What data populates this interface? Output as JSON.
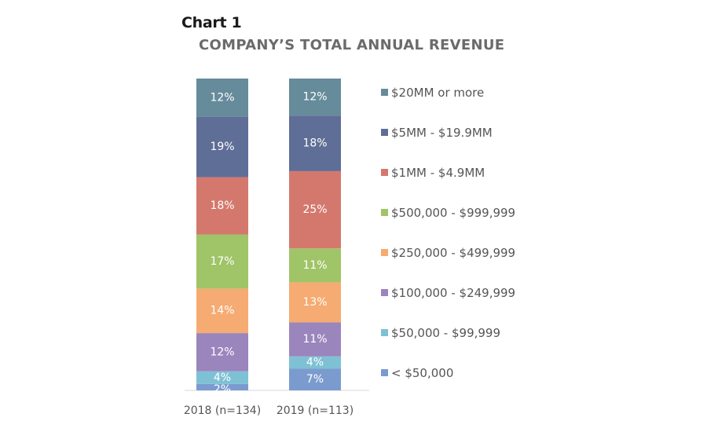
{
  "chart_data": {
    "type": "bar",
    "stacked": true,
    "orientation": "vertical",
    "title": "Chart 1",
    "subtitle": "COMPANY’S TOTAL ANNUAL REVENUE",
    "xlabel": "",
    "ylabel": "",
    "categories": [
      "2018 (n=134)",
      "2019 (n=113)"
    ],
    "series": [
      {
        "name": "< $50,000",
        "color": "#7b9bcf",
        "values": [
          2,
          7
        ],
        "labels": [
          "2%",
          "7%"
        ]
      },
      {
        "name": "$50,000 - $99,999",
        "color": "#7fc1d4",
        "values": [
          4,
          4
        ],
        "labels": [
          "4%",
          "4%"
        ]
      },
      {
        "name": "$100,000 - $249,999",
        "color": "#9b85bd",
        "values": [
          12,
          11
        ],
        "labels": [
          "12%",
          "11%"
        ]
      },
      {
        "name": "$250,000 - $499,999",
        "color": "#f5ab72",
        "values": [
          14,
          13
        ],
        "labels": [
          "14%",
          "13%"
        ]
      },
      {
        "name": "$500,000 - $999,999",
        "color": "#a0c468",
        "values": [
          17,
          11
        ],
        "labels": [
          "17%",
          "11%"
        ]
      },
      {
        "name": "$1MM - $4.9MM",
        "color": "#d4786e",
        "values": [
          18,
          25
        ],
        "labels": [
          "18%",
          "25%"
        ]
      },
      {
        "name": "$5MM - $19.9MM",
        "color": "#5f6e97",
        "values": [
          19,
          18
        ],
        "labels": [
          "19%",
          "18%"
        ]
      },
      {
        "name": "$20MM or more",
        "color": "#668b9b",
        "values": [
          12,
          12
        ],
        "labels": [
          "12%",
          "12%"
        ]
      }
    ],
    "ylim": [
      0,
      100
    ],
    "grid": false,
    "legend_position": "right",
    "legend_order": "top-to-bottom reversed series order"
  }
}
